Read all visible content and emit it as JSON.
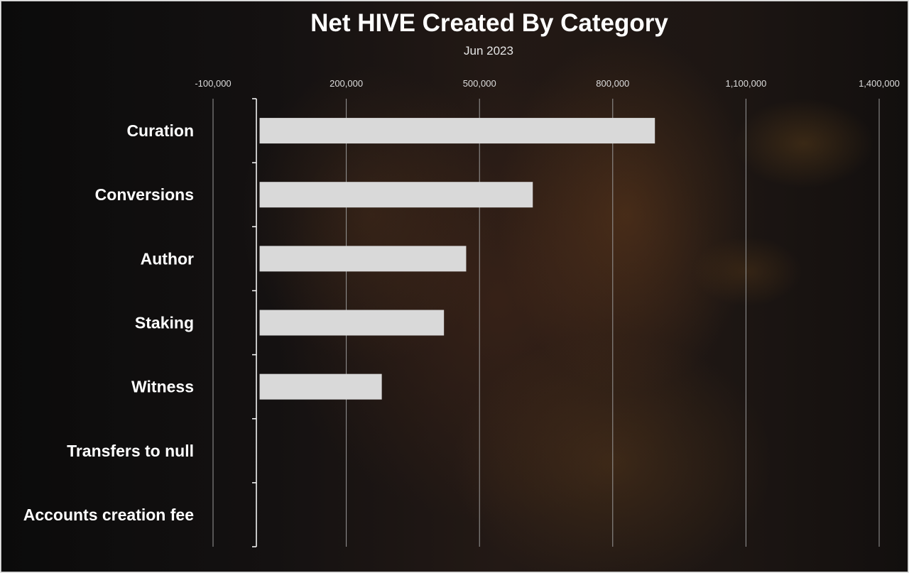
{
  "chart_data": {
    "type": "bar",
    "orientation": "horizontal",
    "title": "Net HIVE Created By Category",
    "subtitle": "Jun 2023",
    "categories": [
      "Curation",
      "Conversions",
      "Author",
      "Staking",
      "Witness",
      "Transfers to null",
      "Accounts creation fee"
    ],
    "values": [
      895000,
      620000,
      470000,
      420000,
      280000,
      0,
      0
    ],
    "xlim": [
      -100000,
      1400000
    ],
    "x_ticks": [
      -100000,
      200000,
      500000,
      800000,
      1100000,
      1400000
    ],
    "x_tick_labels": [
      "-100,000",
      "200,000",
      "500,000",
      "800,000",
      "1,100,000",
      "1,400,000"
    ],
    "xlabel": "",
    "ylabel": "",
    "grid": true,
    "legend": "none",
    "bar_color": "#d9d9d9",
    "gridline_color": "#9a9a9a"
  }
}
